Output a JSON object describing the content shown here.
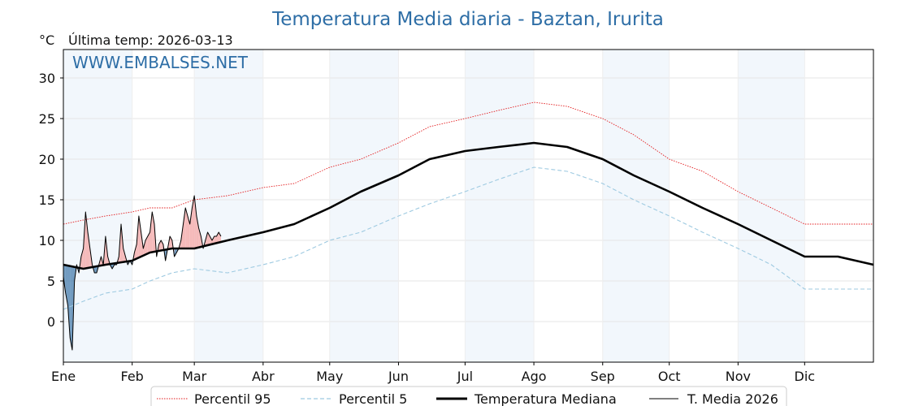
{
  "chart_data": {
    "type": "line",
    "title": "Temperatura Media diaria - Baztan, Irurita",
    "unit_label": "°C",
    "subtitle": "Última temp: 2026-03-13",
    "watermark": "WWW.EMBALSES.NET",
    "xlabel": "",
    "ylabel": "",
    "x_range_days": [
      1,
      366
    ],
    "ylim": [
      -5,
      33.5
    ],
    "y_ticks": [
      0,
      5,
      10,
      15,
      20,
      25,
      30
    ],
    "month_labels": [
      "Ene",
      "Feb",
      "Mar",
      "Abr",
      "May",
      "Jun",
      "Jul",
      "Ago",
      "Sep",
      "Oct",
      "Nov",
      "Dic"
    ],
    "month_start_days": [
      1,
      32,
      60,
      91,
      121,
      152,
      182,
      213,
      244,
      274,
      305,
      335
    ],
    "grid": true,
    "legend_position": "bottom",
    "colors": {
      "p95": "#e31a1c",
      "p5": "#9ecae1",
      "median": "#000000",
      "current": "#000000",
      "above_fill": "#f4b6b6",
      "below_fill": "#2b6aa0",
      "shade": "#f2f7fc",
      "title": "#2e6ea6"
    },
    "series": [
      {
        "name": "Percentil 95",
        "style": "dotted-red",
        "x": [
          1,
          10,
          20,
          32,
          40,
          50,
          60,
          75,
          91,
          105,
          121,
          135,
          152,
          166,
          182,
          197,
          213,
          228,
          244,
          258,
          274,
          289,
          305,
          320,
          335,
          350,
          366
        ],
        "y": [
          12,
          12.5,
          13,
          13.5,
          14,
          14,
          15,
          15.5,
          16.5,
          17,
          19,
          20,
          22,
          24,
          25,
          26,
          27,
          26.5,
          25,
          23,
          20,
          18.5,
          16,
          14,
          12,
          12,
          12
        ]
      },
      {
        "name": "Percentil 5",
        "style": "dashed-lightblue",
        "x": [
          1,
          10,
          20,
          32,
          40,
          50,
          60,
          75,
          91,
          105,
          121,
          135,
          152,
          166,
          182,
          197,
          213,
          228,
          244,
          258,
          274,
          289,
          305,
          320,
          335,
          350,
          366
        ],
        "y": [
          1.5,
          2.5,
          3.5,
          4,
          5,
          6,
          6.5,
          6,
          7,
          8,
          10,
          11,
          13,
          14.5,
          16,
          17.5,
          19,
          18.5,
          17,
          15,
          13,
          11,
          9,
          7,
          4,
          4,
          4
        ]
      },
      {
        "name": "Temperatura Mediana",
        "style": "solid-black-thick",
        "x": [
          1,
          10,
          20,
          32,
          40,
          50,
          60,
          75,
          91,
          105,
          121,
          135,
          152,
          166,
          182,
          197,
          213,
          228,
          244,
          258,
          274,
          289,
          305,
          320,
          335,
          350,
          366
        ],
        "y": [
          7,
          6.5,
          7,
          7.5,
          8.5,
          9,
          9,
          10,
          11,
          12,
          14,
          16,
          18,
          20,
          21,
          21.5,
          22,
          21.5,
          20,
          18,
          16,
          14,
          12,
          10,
          8,
          8,
          7
        ]
      },
      {
        "name": "T. Media 2026",
        "style": "solid-black-thin",
        "x": [
          1,
          2,
          3,
          4,
          5,
          6,
          7,
          8,
          9,
          10,
          11,
          12,
          13,
          14,
          15,
          16,
          17,
          18,
          19,
          20,
          21,
          22,
          23,
          24,
          25,
          26,
          27,
          28,
          29,
          30,
          31,
          32,
          33,
          34,
          35,
          36,
          37,
          38,
          39,
          40,
          41,
          42,
          43,
          44,
          45,
          46,
          47,
          48,
          49,
          50,
          51,
          52,
          53,
          54,
          55,
          56,
          57,
          58,
          59,
          60,
          61,
          62,
          63,
          64,
          65,
          66,
          67,
          68,
          69,
          70,
          71,
          72
        ],
        "y": [
          5.5,
          3.5,
          2,
          -2,
          -3.5,
          5,
          7,
          6,
          8,
          9,
          13.5,
          11,
          9,
          7,
          6,
          6,
          7,
          8,
          7,
          10.5,
          8,
          7,
          6.5,
          7,
          7,
          8,
          12,
          9,
          8,
          7,
          7.5,
          7,
          8.5,
          9.5,
          13,
          11,
          9,
          10,
          10.5,
          11,
          13.5,
          12,
          8,
          9.5,
          10,
          9.5,
          7.5,
          9,
          10.5,
          10,
          8,
          8.5,
          9,
          10,
          12,
          14,
          13,
          12,
          14,
          15.5,
          13,
          11.5,
          10.5,
          9,
          10,
          11,
          10.5,
          10,
          10.5,
          10.5,
          11,
          10.5
        ]
      }
    ]
  }
}
